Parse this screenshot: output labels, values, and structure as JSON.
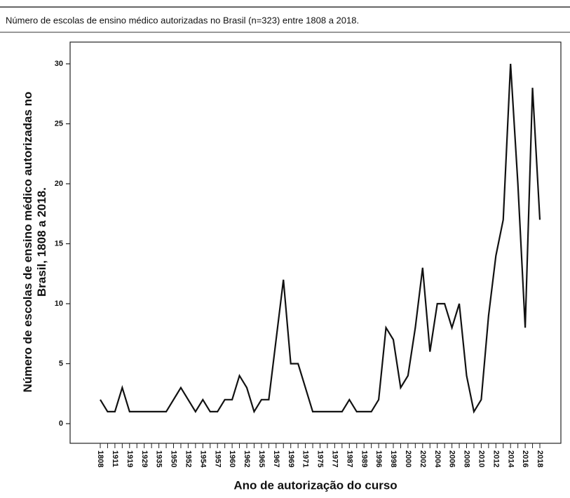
{
  "chart_data": {
    "type": "line",
    "title": "Número de escolas de ensino médico autorizadas no Brasil (n=323) entre 1808 a 2018.",
    "y_label": [
      "Número de escolas de ensino médico autorizadas no",
      "Brasil, 1808 a 2018."
    ],
    "x_label": "Ano de autorização do curso",
    "categories": [
      "1808",
      null,
      "1911",
      null,
      "1919",
      null,
      "1929",
      null,
      "1935",
      null,
      "1950",
      null,
      "1952",
      null,
      "1954",
      null,
      "1957",
      null,
      "1960",
      null,
      "1962",
      null,
      "1965",
      null,
      "1967",
      null,
      "1969",
      null,
      "1971",
      null,
      "1975",
      null,
      "1977",
      null,
      "1987",
      null,
      "1989",
      null,
      "1996",
      null,
      "1998",
      null,
      "2000",
      null,
      "2002",
      null,
      "2004",
      null,
      "2006",
      null,
      "2008",
      null,
      "2010",
      null,
      "2012",
      null,
      "2014",
      null,
      "2016",
      null,
      "2018"
    ],
    "series": [
      {
        "color": "#111111",
        "values": [
          2,
          1,
          1,
          3,
          1,
          1,
          1,
          1,
          1,
          1,
          2,
          3,
          2,
          1,
          2,
          1,
          1,
          2,
          2,
          4,
          3,
          1,
          2,
          2,
          7,
          12,
          5,
          5,
          3,
          1,
          1,
          1,
          1,
          1,
          2,
          1,
          1,
          1,
          2,
          8,
          7,
          3,
          4,
          8,
          13,
          6,
          10,
          10,
          8,
          10,
          4,
          1,
          2,
          9,
          14,
          17,
          30,
          20,
          8,
          28,
          17
        ]
      }
    ],
    "ylim": [
      0,
      30
    ],
    "yticks": [
      0,
      5,
      10,
      15,
      20,
      25,
      30
    ]
  }
}
